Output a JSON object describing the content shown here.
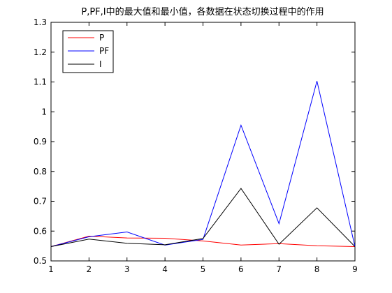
{
  "chart_data": {
    "type": "line",
    "title": "P,PF,I中的最大值和最小值，各数据在状态切换过程中的作用",
    "xlabel": "",
    "ylabel": "",
    "x": [
      1,
      2,
      3,
      4,
      5,
      6,
      7,
      8,
      9
    ],
    "xlim": [
      1,
      9
    ],
    "ylim": [
      0.5,
      1.3
    ],
    "xticks": [
      1,
      2,
      3,
      4,
      5,
      6,
      7,
      8,
      9
    ],
    "yticks": [
      0.5,
      0.6,
      0.7,
      0.8,
      0.9,
      1,
      1.1,
      1.2,
      1.3
    ],
    "grid": false,
    "legend_position": "top-left",
    "series": [
      {
        "name": "P",
        "color": "#ff0000",
        "values": [
          0.548,
          0.583,
          0.577,
          0.576,
          0.567,
          0.553,
          0.558,
          0.551,
          0.548
        ]
      },
      {
        "name": "PF",
        "color": "#0000ff",
        "values": [
          0.548,
          0.581,
          0.597,
          0.553,
          0.572,
          0.955,
          0.625,
          1.103,
          0.548
        ]
      },
      {
        "name": "I",
        "color": "#000000",
        "values": [
          0.548,
          0.573,
          0.559,
          0.554,
          0.575,
          0.743,
          0.556,
          0.678,
          0.548
        ]
      }
    ]
  }
}
